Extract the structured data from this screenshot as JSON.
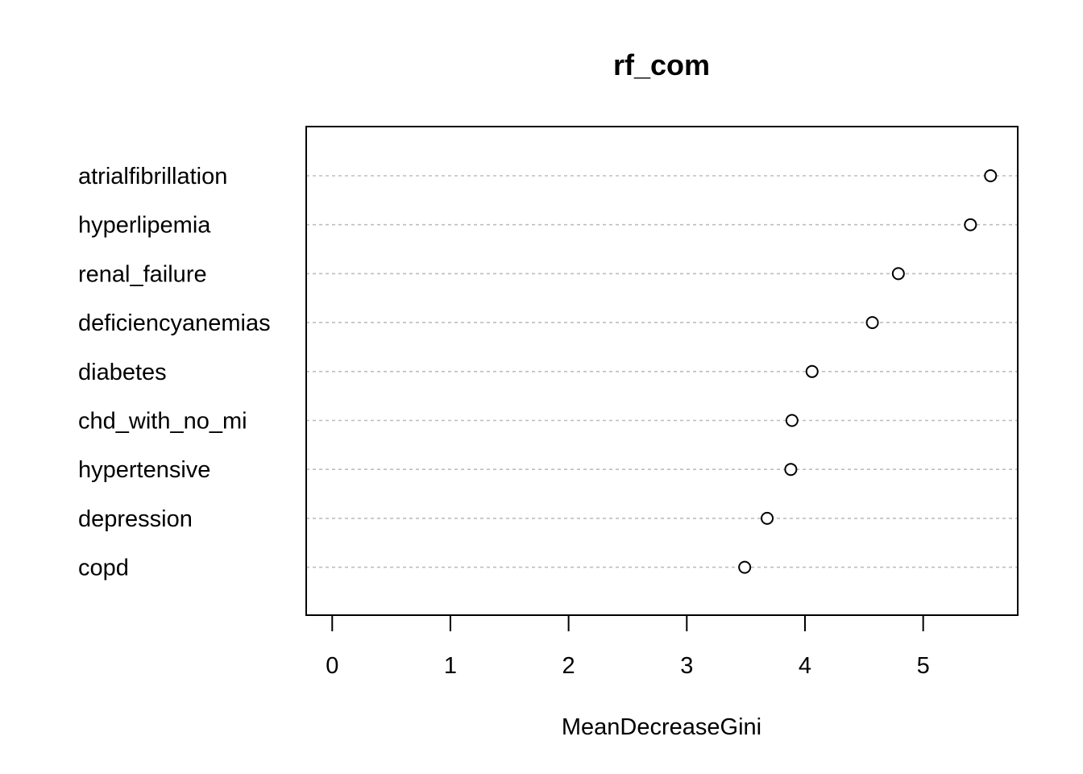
{
  "chart_data": {
    "type": "scatter",
    "title": "rf_com",
    "xlabel": "MeanDecreaseGini",
    "ylabel": "",
    "xlim": [
      -0.22,
      5.8
    ],
    "xticks": [
      0,
      1,
      2,
      3,
      4,
      5
    ],
    "xtick_labels": [
      "0",
      "1",
      "2",
      "3",
      "4",
      "5"
    ],
    "grid": "dashed horizontal lines per variable",
    "categories": [
      "atrialfibrillation",
      "hyperlipemia",
      "renal_failure",
      "deficiencyanemias",
      "diabetes",
      "chd_with_no_mi",
      "hypertensive",
      "depression",
      "copd"
    ],
    "values": [
      5.57,
      5.4,
      4.79,
      4.57,
      4.06,
      3.89,
      3.88,
      3.68,
      3.49
    ]
  }
}
